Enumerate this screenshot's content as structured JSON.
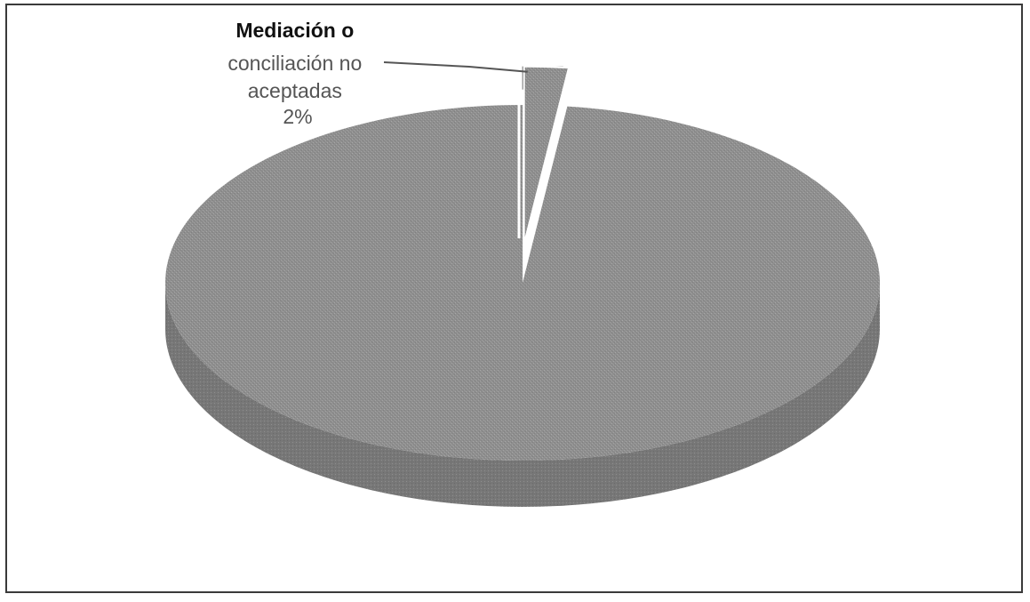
{
  "chart_data": {
    "type": "pie",
    "style": "3d-exploded",
    "title": "",
    "slices": [
      {
        "label": "Mediación o conciliación no aceptadas",
        "value": 2,
        "value_label": "2%",
        "color": "#808080",
        "exploded": true,
        "label_lines": [
          "Mediación o",
          "conciliación no",
          "aceptadas",
          "2%"
        ]
      },
      {
        "label": "",
        "value": 98,
        "color": "#8a8a8a",
        "exploded": false
      }
    ],
    "legend": false
  },
  "colors": {
    "pie_top": "#9a9a9a",
    "pie_side": "#7a7a7a",
    "frame": "#3a3a3a",
    "label_text": "#555555",
    "label_text_dark": "#111111"
  }
}
